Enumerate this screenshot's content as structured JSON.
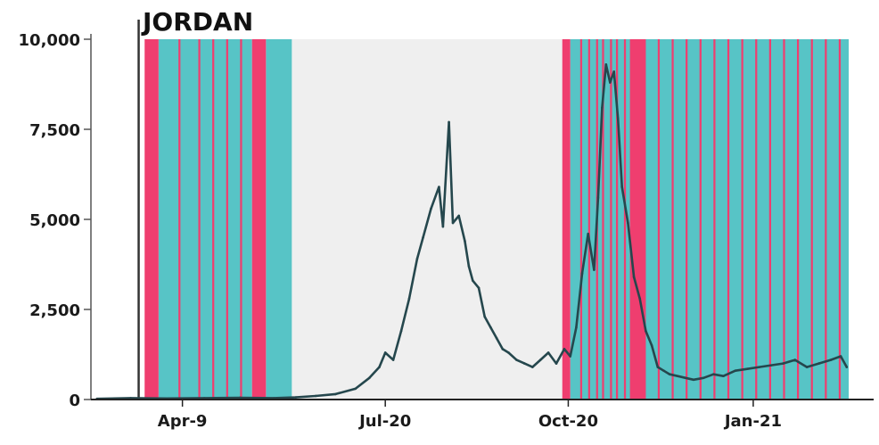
{
  "chart_data": {
    "type": "line",
    "title": "JORDAN",
    "xlabel": "",
    "ylabel": "",
    "ylim": [
      0,
      10000
    ],
    "xlim": [
      "2020-02-23",
      "2021-03-10"
    ],
    "y_ticks": [
      0,
      2500,
      5000,
      7500,
      10000
    ],
    "y_tick_labels": [
      "0",
      "2,500",
      "5,000",
      "7,500",
      "10,000"
    ],
    "x_ticks": [
      "2020-04-09",
      "2020-07-20",
      "2020-10-20",
      "2021-01-21"
    ],
    "x_tick_labels": [
      "Apr-9",
      "Jul-20",
      "Oct-20",
      "Jan-21"
    ],
    "grid": false,
    "reference_line_date": "2020-03-18",
    "colors": {
      "line": "#25474d",
      "lockdown_full": "#ef3e6f",
      "lockdown_partial": "#57c4c6",
      "no_lockdown": "#efefef",
      "axis": "#555555"
    },
    "periods": [
      {
        "start": "2020-03-21",
        "end": "2020-03-28",
        "status": "full"
      },
      {
        "start": "2020-03-28",
        "end": "2020-05-14",
        "status": "partial"
      },
      {
        "start": "2020-04-07",
        "end": "2020-04-08",
        "status": "full"
      },
      {
        "start": "2020-04-17",
        "end": "2020-04-18",
        "status": "full"
      },
      {
        "start": "2020-04-24",
        "end": "2020-04-25",
        "status": "full"
      },
      {
        "start": "2020-05-01",
        "end": "2020-05-02",
        "status": "full"
      },
      {
        "start": "2020-05-08",
        "end": "2020-05-09",
        "status": "full"
      },
      {
        "start": "2020-05-14",
        "end": "2020-05-21",
        "status": "full"
      },
      {
        "start": "2020-05-21",
        "end": "2020-06-03",
        "status": "partial"
      },
      {
        "start": "2020-06-03",
        "end": "2020-10-17",
        "status": "none"
      },
      {
        "start": "2020-10-17",
        "end": "2020-10-21",
        "status": "full"
      },
      {
        "start": "2020-10-21",
        "end": "2021-03-10",
        "status": "partial"
      },
      {
        "start": "2020-10-26",
        "end": "2020-10-27",
        "status": "full"
      },
      {
        "start": "2020-10-30",
        "end": "2020-10-31",
        "status": "full"
      },
      {
        "start": "2020-11-03",
        "end": "2020-11-04",
        "status": "full"
      },
      {
        "start": "2020-11-06",
        "end": "2020-11-07",
        "status": "full"
      },
      {
        "start": "2020-11-10",
        "end": "2020-11-11",
        "status": "full"
      },
      {
        "start": "2020-11-13",
        "end": "2020-11-14",
        "status": "full"
      },
      {
        "start": "2020-11-17",
        "end": "2020-11-18",
        "status": "full"
      },
      {
        "start": "2020-11-20",
        "end": "2020-11-28",
        "status": "full"
      },
      {
        "start": "2020-12-04",
        "end": "2020-12-05",
        "status": "full"
      },
      {
        "start": "2020-12-11",
        "end": "2020-12-12",
        "status": "full"
      },
      {
        "start": "2020-12-18",
        "end": "2020-12-19",
        "status": "full"
      },
      {
        "start": "2020-12-25",
        "end": "2020-12-26",
        "status": "full"
      },
      {
        "start": "2021-01-01",
        "end": "2021-01-02",
        "status": "full"
      },
      {
        "start": "2021-01-08",
        "end": "2021-01-09",
        "status": "full"
      },
      {
        "start": "2021-01-15",
        "end": "2021-01-16",
        "status": "full"
      },
      {
        "start": "2021-01-22",
        "end": "2021-01-23",
        "status": "full"
      },
      {
        "start": "2021-01-29",
        "end": "2021-01-30",
        "status": "full"
      },
      {
        "start": "2021-02-05",
        "end": "2021-02-06",
        "status": "full"
      },
      {
        "start": "2021-02-12",
        "end": "2021-02-13",
        "status": "full"
      },
      {
        "start": "2021-02-19",
        "end": "2021-02-20",
        "status": "full"
      },
      {
        "start": "2021-02-26",
        "end": "2021-02-27",
        "status": "full"
      },
      {
        "start": "2021-03-05",
        "end": "2021-03-06",
        "status": "full"
      }
    ],
    "series": [
      {
        "x": [
          "2020-02-26",
          "2020-03-14",
          "2020-04-01",
          "2020-04-20",
          "2020-05-08",
          "2020-05-25",
          "2020-06-05",
          "2020-06-15",
          "2020-06-25",
          "2020-07-05",
          "2020-07-12",
          "2020-07-17",
          "2020-07-20",
          "2020-07-24",
          "2020-07-28",
          "2020-08-01",
          "2020-08-05",
          "2020-08-08",
          "2020-08-12",
          "2020-08-16",
          "2020-08-18",
          "2020-08-21",
          "2020-08-23",
          "2020-08-26",
          "2020-08-29",
          "2020-08-31",
          "2020-09-02",
          "2020-09-05",
          "2020-09-08",
          "2020-09-11",
          "2020-09-14",
          "2020-09-17",
          "2020-09-20",
          "2020-09-24",
          "2020-09-28",
          "2020-10-02",
          "2020-10-06",
          "2020-10-10",
          "2020-10-14",
          "2020-10-18",
          "2020-10-21",
          "2020-10-24",
          "2020-10-27",
          "2020-10-30",
          "2020-11-02",
          "2020-11-04",
          "2020-11-06",
          "2020-11-08",
          "2020-11-10",
          "2020-11-12",
          "2020-11-14",
          "2020-11-16",
          "2020-11-19",
          "2020-11-22",
          "2020-11-25",
          "2020-11-28",
          "2020-12-01",
          "2020-12-04",
          "2020-12-07",
          "2020-12-10",
          "2020-12-14",
          "2020-12-18",
          "2020-12-22",
          "2020-12-27",
          "2021-01-01",
          "2021-01-06",
          "2021-01-12",
          "2021-01-18",
          "2021-01-24",
          "2021-01-30",
          "2021-02-05",
          "2021-02-11",
          "2021-02-17",
          "2021-02-23",
          "2021-03-01",
          "2021-03-06",
          "2021-03-09"
        ],
        "y": [
          20,
          40,
          30,
          40,
          50,
          40,
          60,
          100,
          150,
          300,
          600,
          900,
          1300,
          1100,
          1900,
          2800,
          3900,
          4500,
          5300,
          5900,
          4800,
          7700,
          4900,
          5100,
          4400,
          3700,
          3300,
          3100,
          2300,
          2000,
          1700,
          1400,
          1300,
          1100,
          1000,
          900,
          1100,
          1300,
          1000,
          1400,
          1200,
          2000,
          3500,
          4600,
          3600,
          5600,
          8100,
          9300,
          8800,
          9100,
          7800,
          5900,
          4900,
          3400,
          2800,
          1900,
          1500,
          900,
          800,
          700,
          650,
          600,
          550,
          600,
          700,
          650,
          800,
          850,
          900,
          950,
          1000,
          1100,
          900,
          1000,
          1100,
          1200,
          900
        ]
      }
    ]
  }
}
